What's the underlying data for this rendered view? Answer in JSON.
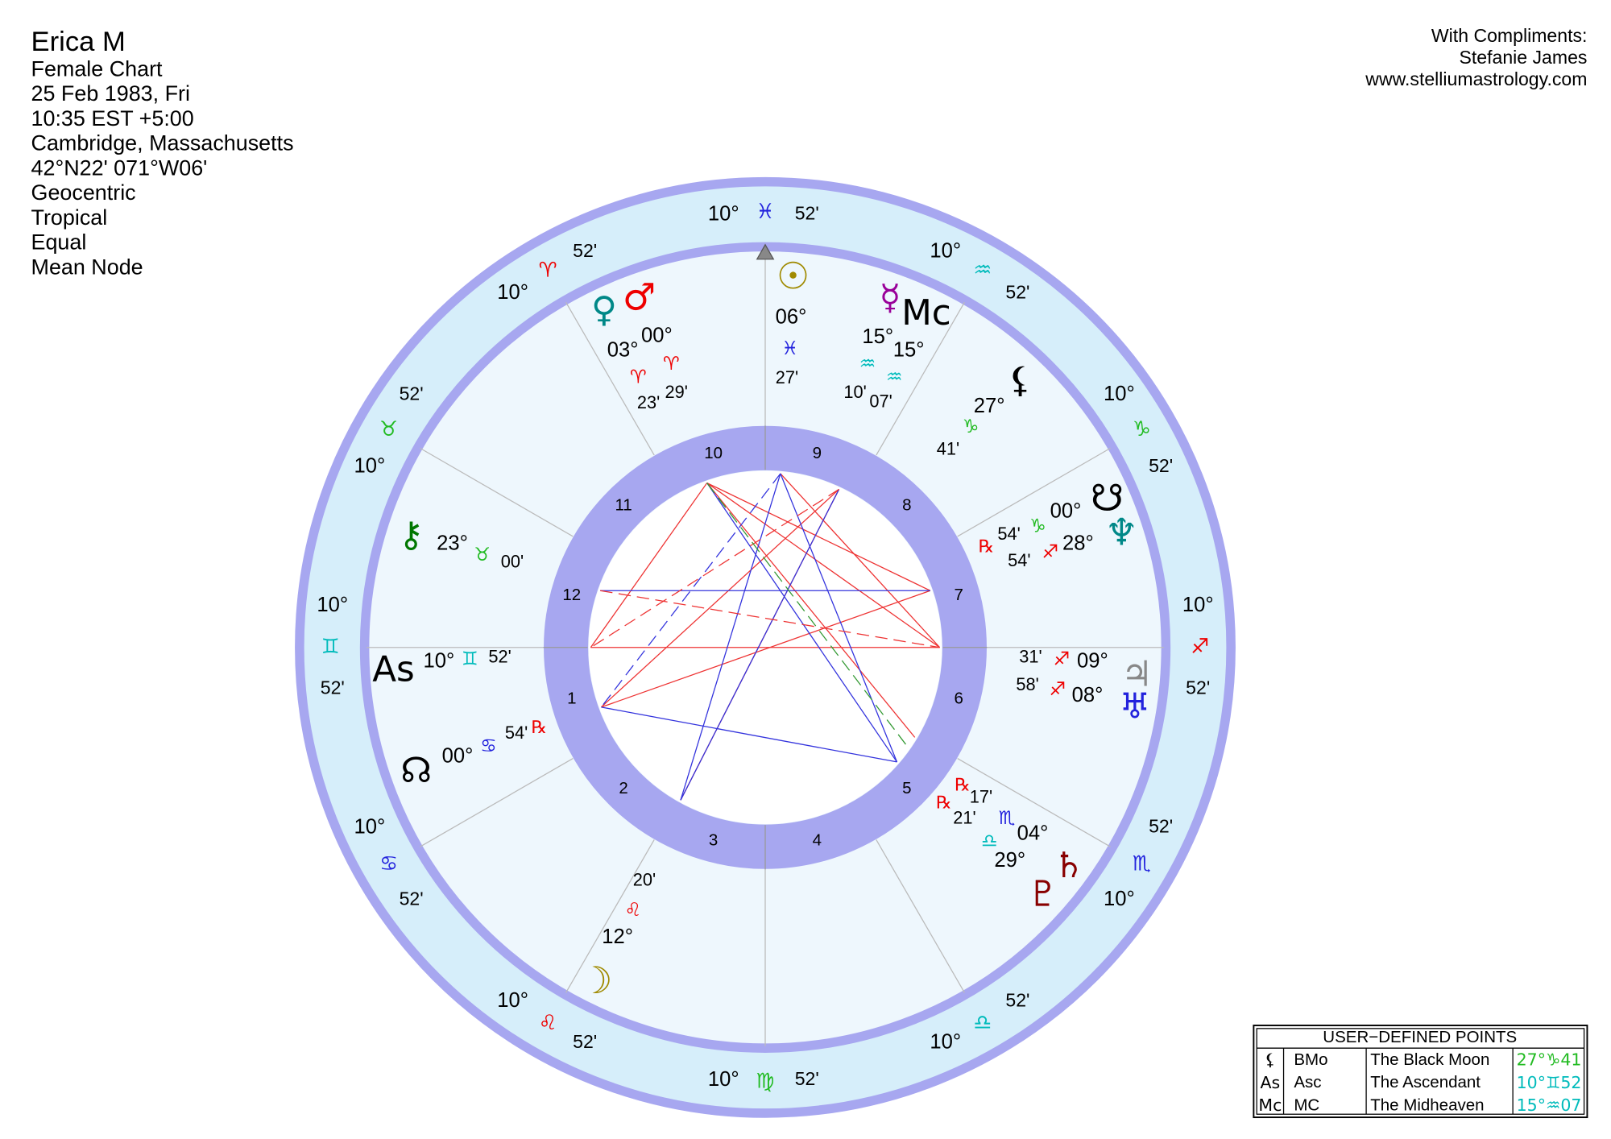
{
  "header": {
    "lines": [
      "Erica M",
      "Female Chart",
      "25 Feb 1983, Fri",
      "10:35  EST +5:00",
      "Cambridge, Massachusetts",
      "42°N22' 071°W06'",
      "Geocentric",
      "Tropical",
      "Equal",
      "Mean Node"
    ]
  },
  "credits": [
    "With Compliments:",
    "Stefanie James",
    "www.stelliumastrology.com"
  ],
  "cusps": [
    {
      "deg": "10°",
      "sign": "♊",
      "min": "52'"
    },
    {
      "deg": "10°",
      "sign": "♋",
      "min": "52'"
    },
    {
      "deg": "10°",
      "sign": "♌",
      "min": "52'"
    },
    {
      "deg": "10°",
      "sign": "♍",
      "min": "52'"
    },
    {
      "deg": "10°",
      "sign": "♎",
      "min": "52'"
    },
    {
      "deg": "10°",
      "sign": "♏",
      "min": "52'"
    },
    {
      "deg": "10°",
      "sign": "♐",
      "min": "52'"
    },
    {
      "deg": "10°",
      "sign": "♑",
      "min": "52'"
    },
    {
      "deg": "10°",
      "sign": "♒",
      "min": "52'"
    },
    {
      "deg": "10°",
      "sign": "♓",
      "min": "52'"
    },
    {
      "deg": "10°",
      "sign": "♈",
      "min": "52'"
    },
    {
      "deg": "10°",
      "sign": "♉",
      "min": "52'"
    }
  ],
  "houses": [
    "1",
    "2",
    "3",
    "4",
    "5",
    "6",
    "7",
    "8",
    "9",
    "10",
    "11",
    "12"
  ],
  "points": [
    {
      "glyph": "☉",
      "deg": "06°",
      "sign": "♓",
      "min": "27'"
    },
    {
      "glyph": "☿",
      "deg": "15°",
      "sign": "♒",
      "min": "10'"
    },
    {
      "glyph": "Mc",
      "deg": "15°",
      "sign": "♒",
      "min": "07'"
    },
    {
      "glyph": "♀",
      "deg": "03°",
      "sign": "♈",
      "min": "23'"
    },
    {
      "glyph": "♂",
      "deg": "00°",
      "sign": "♈",
      "min": "29'"
    },
    {
      "glyph": "⚸",
      "deg": "27°",
      "sign": "♑",
      "min": "41'"
    },
    {
      "glyph": "☋",
      "deg": "00°",
      "sign": "♑",
      "min": "54'",
      "retro": "℞"
    },
    {
      "glyph": "♆",
      "deg": "28°",
      "sign": "♐",
      "min": "54'"
    },
    {
      "glyph": "♃",
      "deg": "09°",
      "sign": "♐",
      "min": "31'"
    },
    {
      "glyph": "♅",
      "deg": "08°",
      "sign": "♐",
      "min": "58'"
    },
    {
      "glyph": "♄",
      "deg": "04°",
      "sign": "♏",
      "min": "17'",
      "retro": "℞"
    },
    {
      "glyph": "♇",
      "deg": "29°",
      "sign": "♎",
      "min": "21'",
      "retro": "℞"
    },
    {
      "glyph": "☽",
      "deg": "12°",
      "sign": "♌",
      "min": "20'"
    },
    {
      "glyph": "☊",
      "deg": "00°",
      "sign": "♋",
      "min": "54'",
      "retro": "℞"
    },
    {
      "glyph": "⚷",
      "deg": "23°",
      "sign": "♉",
      "min": "00'"
    },
    {
      "glyph": "As",
      "deg": "10°",
      "sign": "♊",
      "min": "52'"
    }
  ],
  "table": {
    "title": "USER−DEFINED POINTS",
    "rows": [
      [
        "⚸",
        "BMo",
        "The Black Moon",
        "27°♑41"
      ],
      [
        "As",
        "Asc",
        "The Ascendant",
        "10°♊52"
      ],
      [
        "Mc",
        "MC",
        "The Midheaven",
        "15°♒07"
      ]
    ]
  }
}
